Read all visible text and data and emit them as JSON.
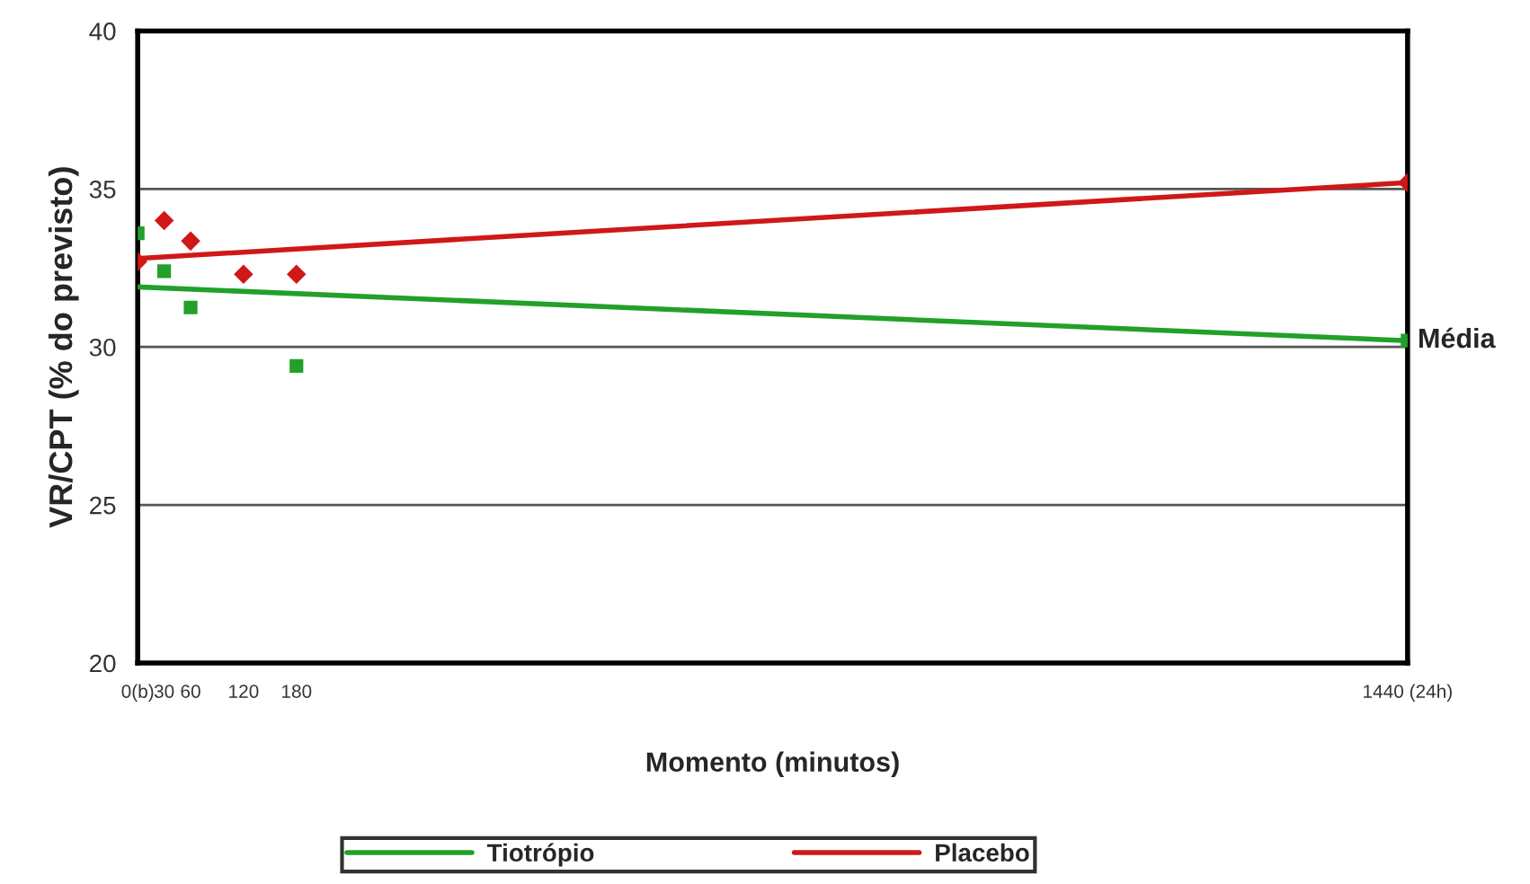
{
  "chart_data": {
    "type": "scatter",
    "xlabel": "Momento (minutos)",
    "ylabel": "VR/CPT (% do previsto)",
    "x": [
      0,
      30,
      60,
      120,
      180,
      1440
    ],
    "xlim": [
      0,
      1440
    ],
    "xticks": [
      {
        "value": 0,
        "label": "0(b)"
      },
      30,
      60,
      120,
      180,
      {
        "value": 1440,
        "label": "1440 (24h)"
      }
    ],
    "ylim": [
      20,
      40
    ],
    "yticks": [
      20,
      25,
      30,
      35,
      40
    ],
    "grid": "y",
    "legend": "bottom",
    "series": [
      {
        "type": "scatter",
        "marker": "square",
        "color": "#22a02a",
        "values": [
          33.6,
          32.4,
          31.25,
          null,
          29.4,
          30.2
        ]
      },
      {
        "type": "scatter",
        "marker": "diamond",
        "color": "#d01818",
        "values": [
          32.7,
          34.0,
          33.35,
          32.3,
          32.3,
          35.2
        ]
      },
      {
        "type": "line",
        "name": "Tiotrópio",
        "color": "#22a02a",
        "values": [
          31.9,
          null,
          null,
          null,
          null,
          30.2
        ]
      },
      {
        "type": "line",
        "name": "Placebo",
        "color": "#d01818",
        "values": [
          32.8,
          null,
          null,
          null,
          null,
          35.2
        ]
      }
    ],
    "annotations": [
      {
        "text": "Média",
        "x": 1440,
        "y": 30.2
      }
    ]
  }
}
